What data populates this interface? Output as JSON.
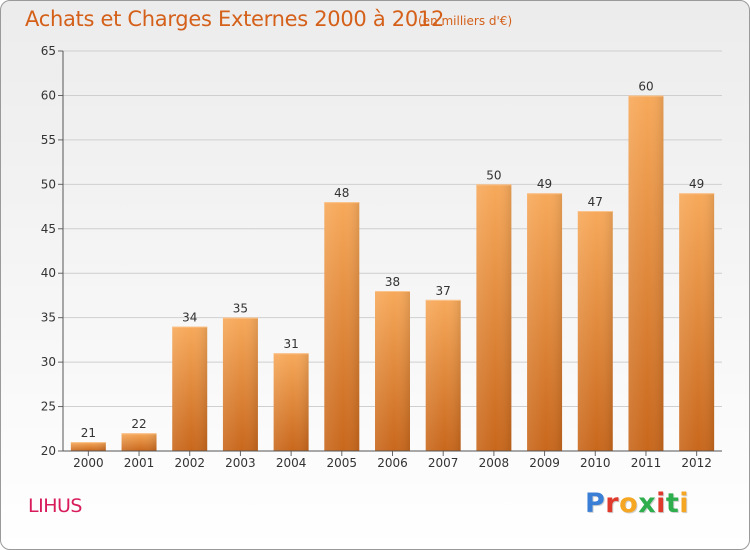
{
  "header": {
    "title": "Achats et Charges Externes 2000 à 2012",
    "subtitle": "(en milliers d'€)"
  },
  "footer": {
    "town": "LIHUS",
    "logo_text": "Proxiti",
    "logo_colors": [
      "#3a7fd5",
      "#e03a2c",
      "#f5a623",
      "#2eae4d",
      "#e03a2c",
      "#2eae4d",
      "#f5a623"
    ]
  },
  "colors": {
    "bar_top": "#f7a95a",
    "bar_bottom": "#c8671c",
    "label": "#333333"
  },
  "chart_data": {
    "type": "bar",
    "categories": [
      "2000",
      "2001",
      "2002",
      "2003",
      "2004",
      "2005",
      "2006",
      "2007",
      "2008",
      "2009",
      "2010",
      "2011",
      "2012"
    ],
    "values": [
      21,
      22,
      34,
      35,
      31,
      48,
      38,
      37,
      50,
      49,
      47,
      60,
      49
    ],
    "ylim": [
      20,
      65
    ],
    "yticks": [
      20,
      25,
      30,
      35,
      40,
      45,
      50,
      55,
      60,
      65
    ],
    "grid": true,
    "data_labels": true
  }
}
